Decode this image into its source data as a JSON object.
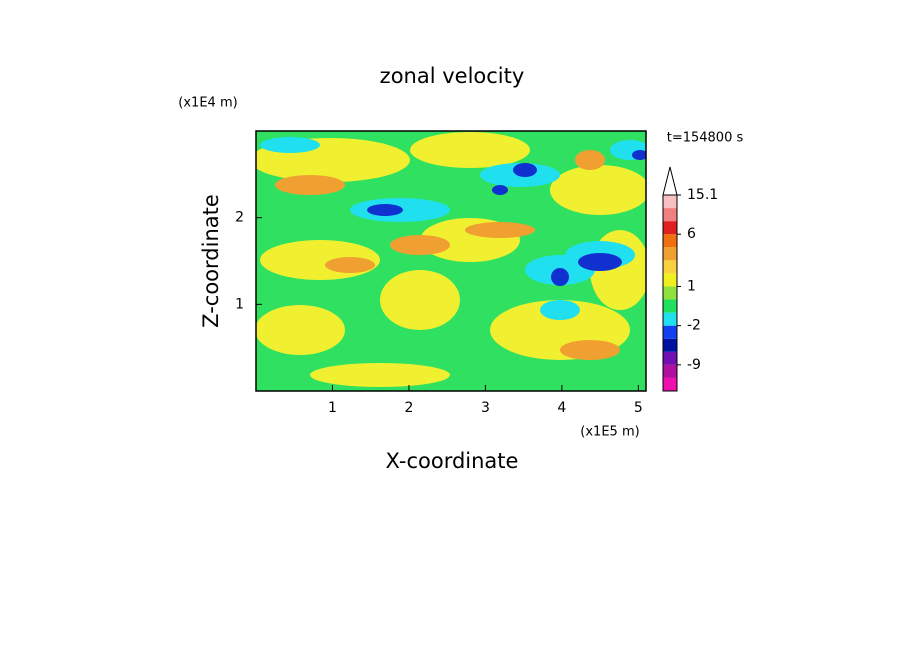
{
  "chart_data": {
    "type": "contour",
    "title": "zonal velocity",
    "x_label": "X-coordinate",
    "y_label": "Z-coordinate",
    "x_unit": "(x1E5 m)",
    "y_unit": "(x1E4 m)",
    "time_label": "t=154800 s",
    "xlim": [
      0,
      5.1
    ],
    "xticks": [
      1,
      2,
      3,
      4,
      5
    ],
    "ylim": [
      0,
      3
    ],
    "yticks": [
      1,
      2
    ],
    "colorbar": {
      "colors": [
        "#f010b0",
        "#b010a0",
        "#7010b0",
        "#0010a0",
        "#1040f0",
        "#20e0f0",
        "#20e060",
        "#90e040",
        "#f0f020",
        "#f8d040",
        "#f0a030",
        "#f07010",
        "#e02020",
        "#f08080",
        "#f8c0c0"
      ],
      "levels": [
        null,
        -9,
        null,
        null,
        -2,
        null,
        null,
        1,
        null,
        null,
        null,
        6,
        null,
        null,
        15.1
      ]
    }
  }
}
